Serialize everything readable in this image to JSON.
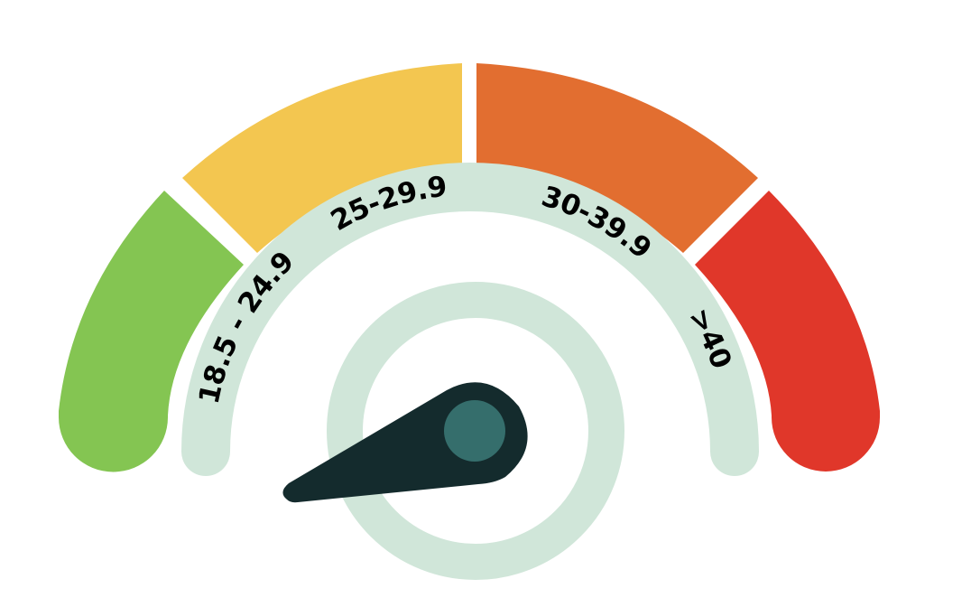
{
  "gauge": {
    "segments": [
      {
        "label": "18.5 - 24.9",
        "color": "#84C552"
      },
      {
        "label": "25-29.9",
        "color": "#F3C650"
      },
      {
        "label": "30-39.9",
        "color": "#E26E30"
      },
      {
        "label": ">40",
        "color": "#E0372A"
      }
    ],
    "label_color": "#000000",
    "inner_band_color": "#D0E6D9",
    "hub_ring_color": "#D0E6D9",
    "needle_color": "#142B2D",
    "hub_color": "#356E6C",
    "needle_reading": "18.5 - 24.9"
  }
}
